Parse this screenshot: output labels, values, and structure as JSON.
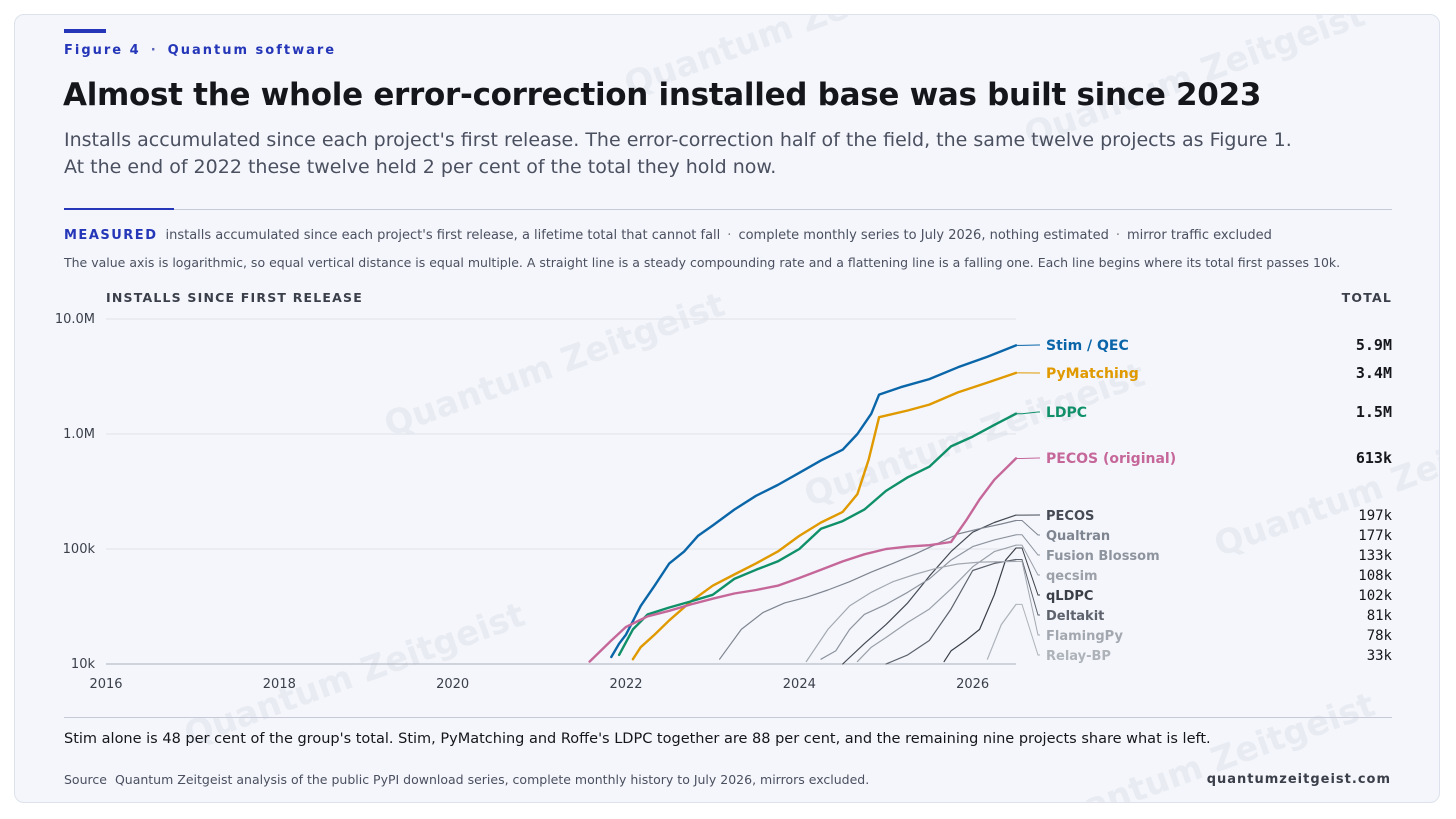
{
  "eyebrow": {
    "figure": "Figure 4",
    "section": "Quantum software"
  },
  "title": "Almost the whole error-correction installed base was built since 2023",
  "subtitle": {
    "line1": "Installs accumulated since each project's first release. The error-correction half of the field, the same twelve projects as Figure 1.",
    "line2": "At the end of 2022 these twelve held 2 per cent of the total they hold now."
  },
  "measured": {
    "tag": "MEASURED",
    "part1": "installs accumulated since each project's first release, a lifetime total that cannot fall",
    "part2": "complete monthly series to July 2026, nothing estimated",
    "part3": "mirror traffic excluded"
  },
  "note": "The value axis is logarithmic, so equal vertical distance is equal multiple. A straight line is a steady compounding rate and a flattening line is a falling one. Each line begins where its total first passes 10k.",
  "watermark": "Quantum Zeitgeist",
  "chart_data": {
    "type": "line",
    "ylabel": "INSTALLS SINCE FIRST RELEASE",
    "total_header": "TOTAL",
    "yscale": "log",
    "ylim": [
      10000,
      10000000
    ],
    "yticks": [
      {
        "v": 10000,
        "label": "10k"
      },
      {
        "v": 100000,
        "label": "100k"
      },
      {
        "v": 1000000,
        "label": "1.0M"
      },
      {
        "v": 10000000,
        "label": "10.0M"
      }
    ],
    "xlim": [
      2016,
      2026.5
    ],
    "xticks": [
      2016,
      2018,
      2020,
      2022,
      2024,
      2026
    ],
    "grid": true,
    "series": [
      {
        "name": "Stim / QEC",
        "total": "5.9M",
        "color": "#0a66a8",
        "emphasis": true,
        "points": [
          [
            2021.83,
            11500
          ],
          [
            2021.92,
            15000
          ],
          [
            2022.0,
            18000
          ],
          [
            2022.17,
            32000
          ],
          [
            2022.33,
            48000
          ],
          [
            2022.5,
            75000
          ],
          [
            2022.67,
            95000
          ],
          [
            2022.83,
            130000
          ],
          [
            2023.0,
            160000
          ],
          [
            2023.25,
            220000
          ],
          [
            2023.5,
            290000
          ],
          [
            2023.75,
            360000
          ],
          [
            2024.0,
            460000
          ],
          [
            2024.25,
            590000
          ],
          [
            2024.5,
            730000
          ],
          [
            2024.67,
            1000000
          ],
          [
            2024.83,
            1500000
          ],
          [
            2024.92,
            2200000
          ],
          [
            2025.17,
            2550000
          ],
          [
            2025.5,
            3000000
          ],
          [
            2025.83,
            3800000
          ],
          [
            2026.17,
            4700000
          ],
          [
            2026.5,
            5900000
          ]
        ]
      },
      {
        "name": "PyMatching",
        "total": "3.4M",
        "color": "#e09a00",
        "emphasis": true,
        "points": [
          [
            2022.08,
            11000
          ],
          [
            2022.17,
            14000
          ],
          [
            2022.33,
            18000
          ],
          [
            2022.5,
            24000
          ],
          [
            2022.75,
            35000
          ],
          [
            2023.0,
            48000
          ],
          [
            2023.25,
            60000
          ],
          [
            2023.5,
            75000
          ],
          [
            2023.75,
            95000
          ],
          [
            2024.0,
            130000
          ],
          [
            2024.25,
            170000
          ],
          [
            2024.5,
            210000
          ],
          [
            2024.67,
            300000
          ],
          [
            2024.8,
            600000
          ],
          [
            2024.92,
            1400000
          ],
          [
            2025.25,
            1600000
          ],
          [
            2025.5,
            1800000
          ],
          [
            2025.83,
            2300000
          ],
          [
            2026.17,
            2800000
          ],
          [
            2026.5,
            3400000
          ]
        ]
      },
      {
        "name": "LDPC",
        "total": "1.5M",
        "color": "#109068",
        "emphasis": true,
        "points": [
          [
            2021.92,
            12000
          ],
          [
            2022.08,
            20000
          ],
          [
            2022.25,
            27000
          ],
          [
            2022.5,
            31000
          ],
          [
            2022.75,
            35000
          ],
          [
            2023.0,
            40000
          ],
          [
            2023.25,
            55000
          ],
          [
            2023.5,
            66000
          ],
          [
            2023.75,
            78000
          ],
          [
            2024.0,
            100000
          ],
          [
            2024.25,
            150000
          ],
          [
            2024.5,
            175000
          ],
          [
            2024.75,
            220000
          ],
          [
            2025.0,
            320000
          ],
          [
            2025.25,
            420000
          ],
          [
            2025.5,
            520000
          ],
          [
            2025.75,
            780000
          ],
          [
            2026.0,
            950000
          ],
          [
            2026.25,
            1200000
          ],
          [
            2026.5,
            1500000
          ]
        ]
      },
      {
        "name": "PECOS (original)",
        "total": "613k",
        "color": "#c6679a",
        "emphasis": true,
        "points": [
          [
            2021.58,
            10500
          ],
          [
            2021.83,
            16000
          ],
          [
            2022.0,
            21000
          ],
          [
            2022.25,
            26000
          ],
          [
            2022.5,
            29000
          ],
          [
            2022.75,
            33000
          ],
          [
            2023.0,
            37000
          ],
          [
            2023.25,
            41000
          ],
          [
            2023.5,
            44000
          ],
          [
            2023.75,
            48000
          ],
          [
            2024.0,
            56000
          ],
          [
            2024.25,
            66000
          ],
          [
            2024.5,
            78000
          ],
          [
            2024.75,
            90000
          ],
          [
            2025.0,
            100000
          ],
          [
            2025.25,
            105000
          ],
          [
            2025.5,
            108000
          ],
          [
            2025.75,
            115000
          ],
          [
            2025.92,
            175000
          ],
          [
            2026.08,
            270000
          ],
          [
            2026.25,
            400000
          ],
          [
            2026.5,
            613000
          ]
        ]
      },
      {
        "name": "PECOS",
        "total": "197k",
        "color": "#454a54",
        "emphasis": false,
        "points": [
          [
            2024.5,
            10000
          ],
          [
            2024.75,
            15000
          ],
          [
            2025.0,
            22000
          ],
          [
            2025.25,
            34000
          ],
          [
            2025.5,
            58000
          ],
          [
            2025.75,
            95000
          ],
          [
            2026.0,
            140000
          ],
          [
            2026.25,
            170000
          ],
          [
            2026.5,
            197000
          ]
        ]
      },
      {
        "name": "Qualtran",
        "total": "177k",
        "color": "#7f8590",
        "emphasis": false,
        "points": [
          [
            2023.08,
            11000
          ],
          [
            2023.33,
            20000
          ],
          [
            2023.58,
            28000
          ],
          [
            2023.83,
            34000
          ],
          [
            2024.08,
            38000
          ],
          [
            2024.33,
            44000
          ],
          [
            2024.58,
            52000
          ],
          [
            2024.83,
            63000
          ],
          [
            2025.08,
            75000
          ],
          [
            2025.33,
            90000
          ],
          [
            2025.58,
            110000
          ],
          [
            2025.83,
            135000
          ],
          [
            2026.08,
            150000
          ],
          [
            2026.33,
            165000
          ],
          [
            2026.5,
            177000
          ]
        ]
      },
      {
        "name": "Fusion Blossom",
        "total": "133k",
        "color": "#8e949e",
        "emphasis": false,
        "points": [
          [
            2024.25,
            11000
          ],
          [
            2024.42,
            13000
          ],
          [
            2024.58,
            20000
          ],
          [
            2024.75,
            27000
          ],
          [
            2025.0,
            33000
          ],
          [
            2025.25,
            42000
          ],
          [
            2025.5,
            55000
          ],
          [
            2025.75,
            80000
          ],
          [
            2026.0,
            105000
          ],
          [
            2026.25,
            120000
          ],
          [
            2026.5,
            133000
          ]
        ]
      },
      {
        "name": "qecsim",
        "total": "108k",
        "color": "#9ba0a9",
        "emphasis": false,
        "points": [
          [
            2024.67,
            10500
          ],
          [
            2024.83,
            14000
          ],
          [
            2025.0,
            17000
          ],
          [
            2025.25,
            23000
          ],
          [
            2025.5,
            30000
          ],
          [
            2025.75,
            45000
          ],
          [
            2026.0,
            70000
          ],
          [
            2026.25,
            95000
          ],
          [
            2026.5,
            108000
          ]
        ]
      },
      {
        "name": "qLDPC",
        "total": "102k",
        "color": "#3a3e47",
        "emphasis": false,
        "points": [
          [
            2025.67,
            10500
          ],
          [
            2025.75,
            13000
          ],
          [
            2025.92,
            16000
          ],
          [
            2026.08,
            20000
          ],
          [
            2026.25,
            40000
          ],
          [
            2026.38,
            80000
          ],
          [
            2026.5,
            102000
          ]
        ]
      },
      {
        "name": "Deltakit",
        "total": "81k",
        "color": "#5d626c",
        "emphasis": false,
        "points": [
          [
            2025.0,
            10000
          ],
          [
            2025.25,
            12000
          ],
          [
            2025.5,
            16000
          ],
          [
            2025.75,
            30000
          ],
          [
            2026.0,
            65000
          ],
          [
            2026.25,
            75000
          ],
          [
            2026.5,
            81000
          ]
        ]
      },
      {
        "name": "FlamingPy",
        "total": "78k",
        "color": "#a3a8b0",
        "emphasis": false,
        "points": [
          [
            2024.08,
            10500
          ],
          [
            2024.33,
            20000
          ],
          [
            2024.58,
            32000
          ],
          [
            2024.83,
            42000
          ],
          [
            2025.08,
            52000
          ],
          [
            2025.33,
            60000
          ],
          [
            2025.58,
            68000
          ],
          [
            2025.83,
            74000
          ],
          [
            2026.08,
            77000
          ],
          [
            2026.5,
            78000
          ]
        ]
      },
      {
        "name": "Relay-BP",
        "total": "33k",
        "color": "#aeb3ba",
        "emphasis": false,
        "points": [
          [
            2026.17,
            11000
          ],
          [
            2026.33,
            22000
          ],
          [
            2026.5,
            33000
          ]
        ]
      }
    ]
  }
}
